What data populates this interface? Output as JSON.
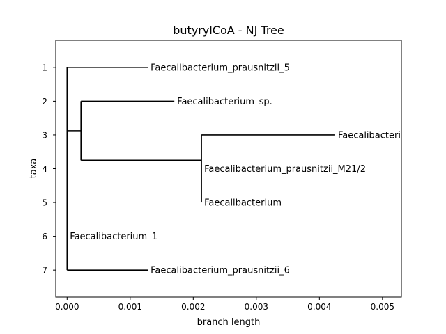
{
  "chart_data": {
    "type": "tree",
    "title": "butyrylCoA - NJ Tree",
    "xlabel": "branch length",
    "ylabel": "taxa",
    "xlim": [
      -0.00018,
      0.0053
    ],
    "ylim": [
      7.8,
      0.2
    ],
    "xticks": [
      0.0,
      0.001,
      0.002,
      0.003,
      0.004,
      0.005
    ],
    "xtick_labels": [
      "0.000",
      "0.001",
      "0.002",
      "0.003",
      "0.004",
      "0.005"
    ],
    "yticks": [
      1,
      2,
      3,
      4,
      5,
      6,
      7
    ],
    "ytick_labels": [
      "1",
      "2",
      "3",
      "4",
      "5",
      "6",
      "7"
    ],
    "grid": false,
    "leaves": [
      {
        "label": "Faecalibacterium_prausnitzii_5",
        "x": 0.00128,
        "y": 1
      },
      {
        "label": "Faecalibacterium_sp.",
        "x": 0.0017,
        "y": 2
      },
      {
        "label": "Faecalibacterium_prau",
        "x": 0.00425,
        "y": 3
      },
      {
        "label": "Faecalibacterium_prausnitzii_M21/2",
        "x": 0.00213,
        "y": 4
      },
      {
        "label": "Faecalibacterium",
        "x": 0.00213,
        "y": 5
      },
      {
        "label": "Faecalibacterium_1",
        "x": 0.0,
        "y": 6
      },
      {
        "label": "Faecalibacterium_prausnitzii_6",
        "x": 0.00128,
        "y": 7
      }
    ],
    "internal_nodes": [
      {
        "id": "root",
        "x": 0.0,
        "y": 2.875
      },
      {
        "id": "n1",
        "x": 0.00022,
        "y": 3.75
      },
      {
        "id": "n2",
        "x": 0.00213,
        "y": 4.0
      }
    ],
    "branches": [
      {
        "from": "root",
        "x0": 0.0,
        "x1": 0.00128,
        "y": 1
      },
      {
        "from": "root",
        "x0": 0.0,
        "x1": 0.00022,
        "y": 2.875
      },
      {
        "from": "root",
        "x0": 0.0,
        "x1": 0.0,
        "y": 6
      },
      {
        "from": "root",
        "x0": 0.0,
        "x1": 0.00128,
        "y": 7
      },
      {
        "from": "n1",
        "x0": 0.00022,
        "x1": 0.0017,
        "y": 2
      },
      {
        "from": "n1",
        "x0": 0.00022,
        "x1": 0.00213,
        "y": 3.75
      },
      {
        "from": "n2",
        "x0": 0.00213,
        "x1": 0.00425,
        "y": 3
      },
      {
        "from": "n2",
        "x0": 0.00213,
        "x1": 0.00213,
        "y": 4
      },
      {
        "from": "n2",
        "x0": 0.00213,
        "x1": 0.00213,
        "y": 5
      }
    ],
    "verticals": [
      {
        "node": "root",
        "x": 0.0,
        "y0": 1,
        "y1": 7
      },
      {
        "node": "n1",
        "x": 0.00022,
        "y0": 2,
        "y1": 3.75
      },
      {
        "node": "n2",
        "x": 0.00213,
        "y0": 3,
        "y1": 5
      }
    ]
  }
}
